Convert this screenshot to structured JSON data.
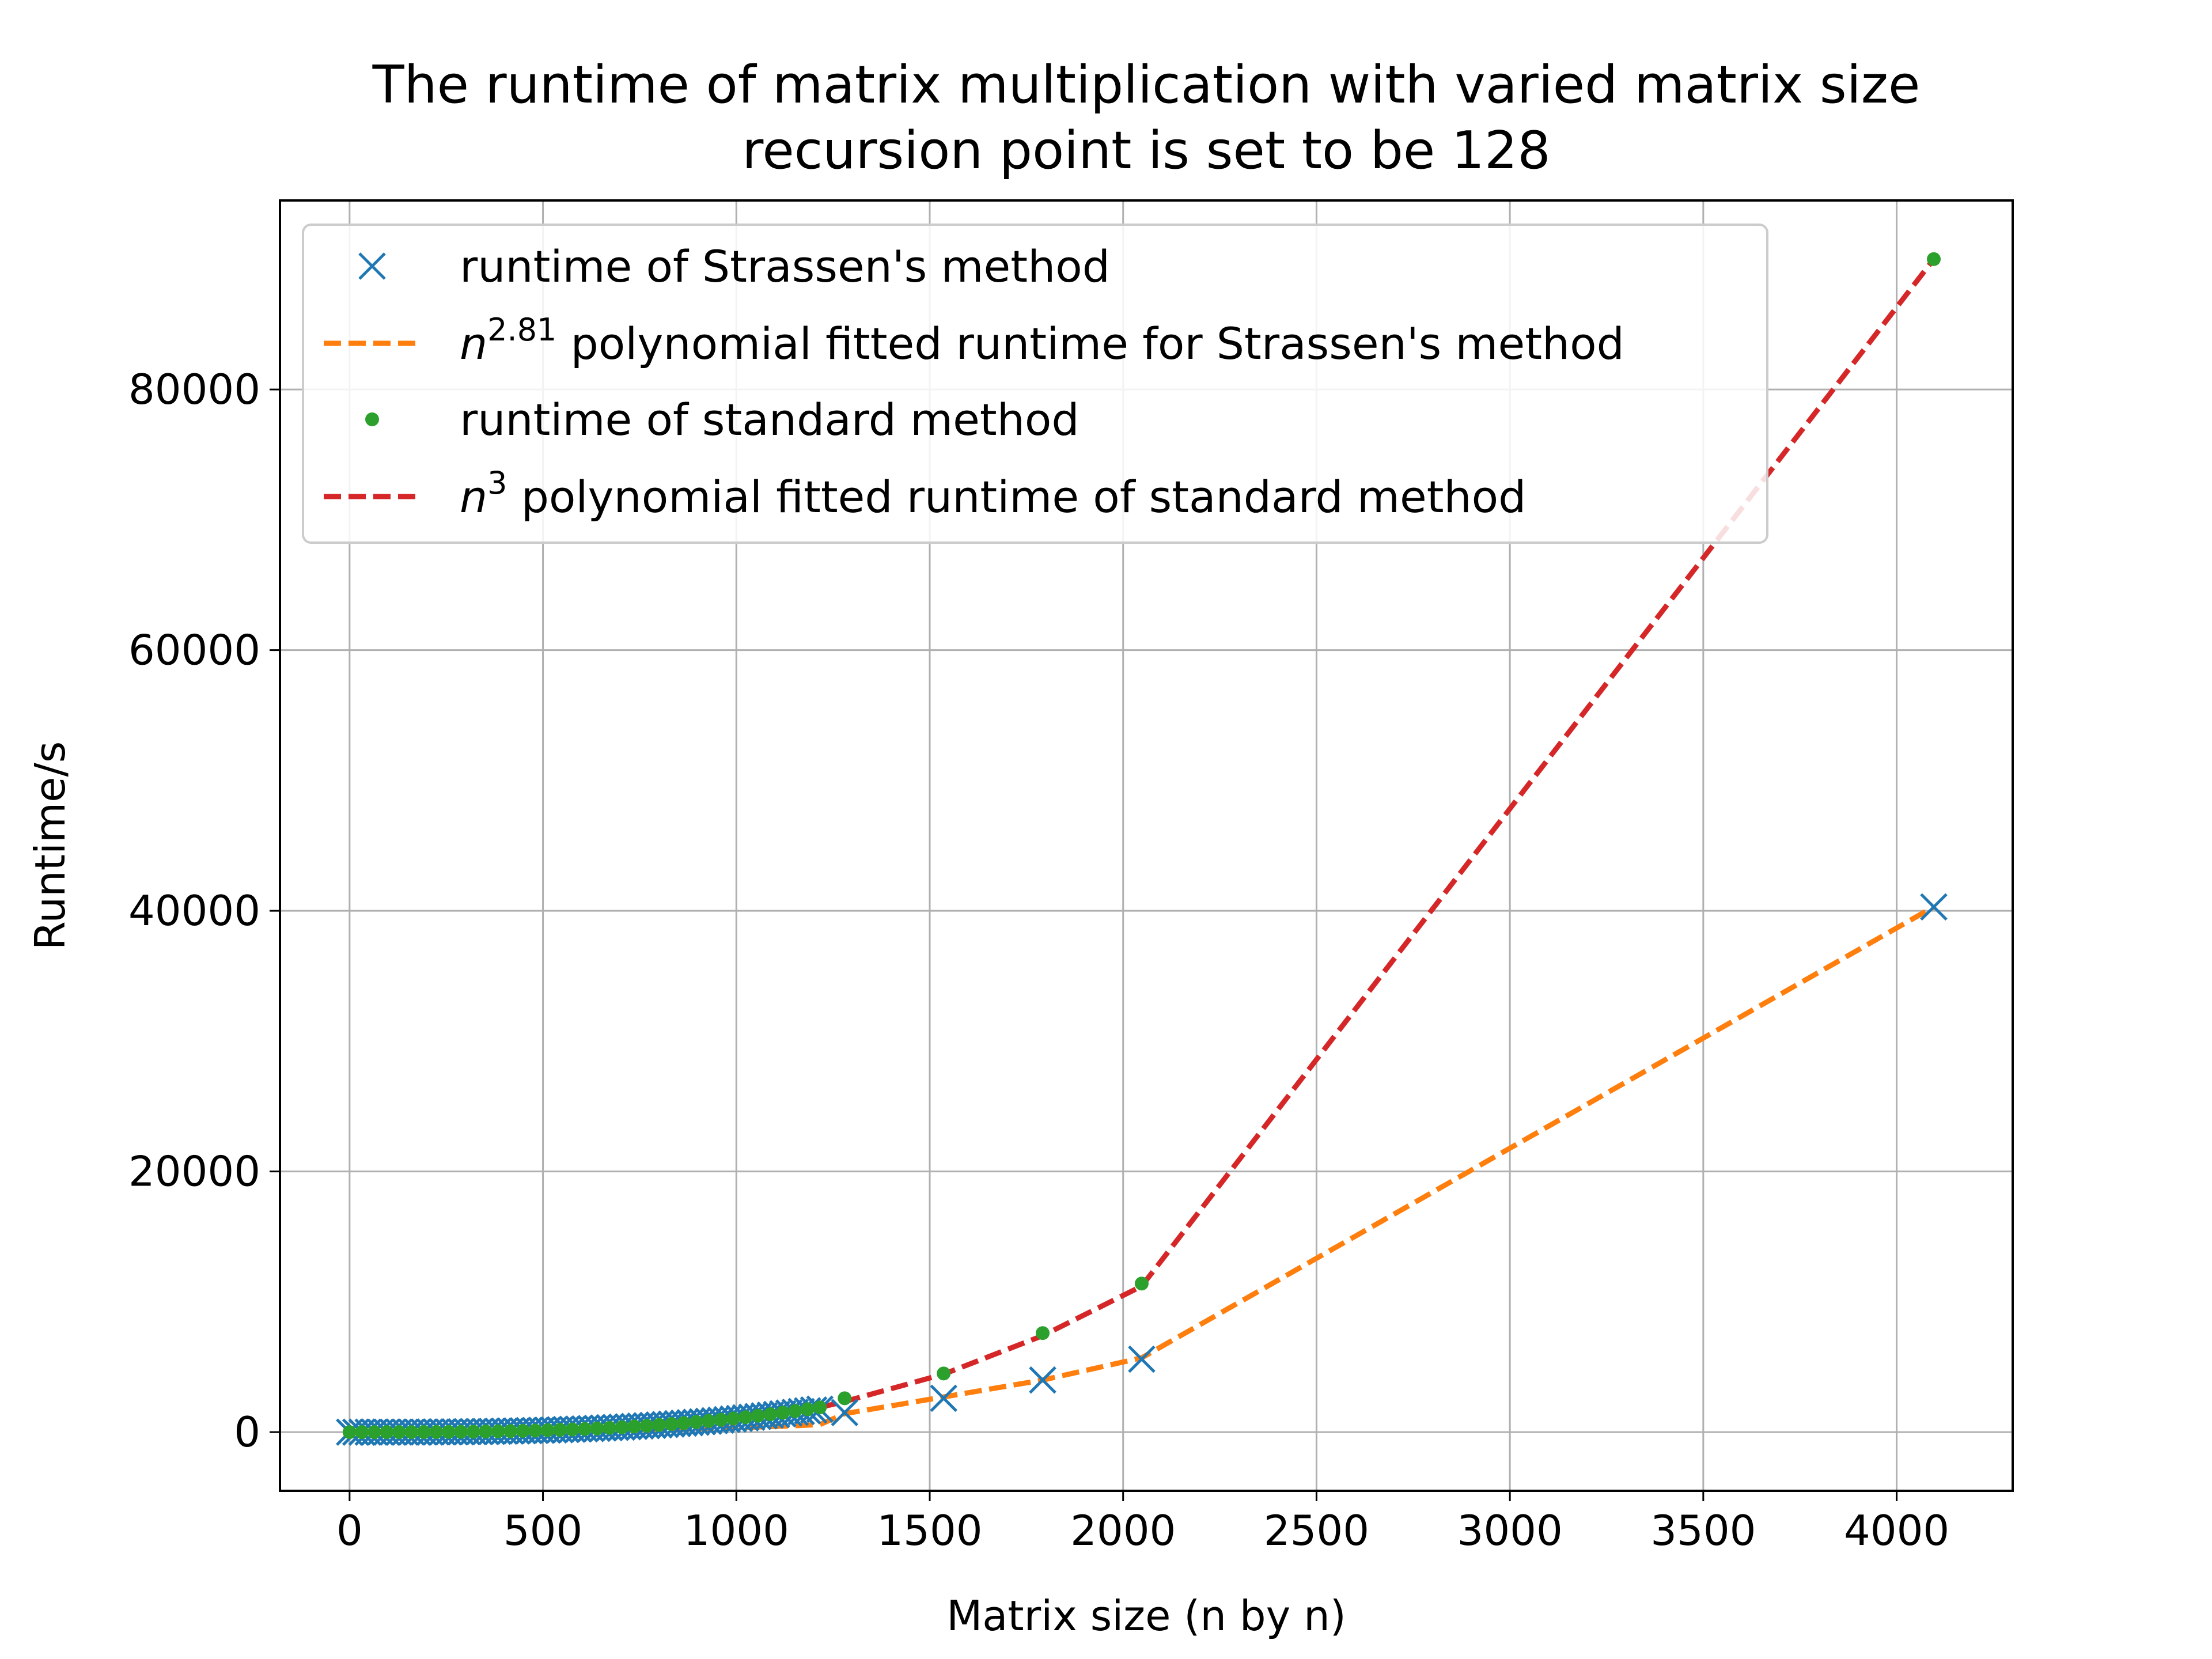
{
  "chart_data": {
    "type": "line",
    "title": "The runtime of matrix multiplication with varied matrix size",
    "subtitle": "recursion point is set to be 128",
    "xlabel": "Matrix size (n by n)",
    "ylabel": "Runtime/s",
    "xlim": [
      -180,
      4300
    ],
    "ylim": [
      -4500,
      94500
    ],
    "x_ticks": [
      0,
      500,
      1000,
      1500,
      2000,
      2500,
      3000,
      3500,
      4000
    ],
    "y_ticks": [
      0,
      20000,
      40000,
      60000,
      80000
    ],
    "x_tick_labels": [
      "0",
      "500",
      "1000",
      "1500",
      "2000",
      "2500",
      "3000",
      "3500",
      "4000"
    ],
    "y_tick_labels": [
      "0",
      "20000",
      "40000",
      "60000",
      "80000"
    ],
    "grid": true,
    "legend_position": "upper-left",
    "series": [
      {
        "name": "runtime of Strassen's method",
        "legend": {
          "prefix": "",
          "sup": "",
          "text": "runtime of Strassen's method"
        },
        "style": "marker-x",
        "color": "#1f77b4",
        "x": [
          0,
          16,
          32,
          48,
          64,
          80,
          96,
          112,
          128,
          144,
          160,
          176,
          192,
          208,
          224,
          240,
          256,
          272,
          288,
          304,
          320,
          336,
          352,
          368,
          384,
          400,
          416,
          432,
          448,
          464,
          480,
          496,
          512,
          528,
          544,
          560,
          576,
          592,
          608,
          624,
          640,
          656,
          672,
          688,
          704,
          720,
          736,
          752,
          768,
          784,
          800,
          816,
          832,
          848,
          864,
          880,
          896,
          912,
          928,
          944,
          960,
          976,
          992,
          1008,
          1024,
          1040,
          1056,
          1072,
          1088,
          1104,
          1120,
          1136,
          1152,
          1168,
          1184,
          1200,
          1216,
          1280,
          1536,
          1792,
          2048,
          4096
        ],
        "y": [
          0,
          0,
          0,
          0,
          1,
          1,
          1,
          2,
          2,
          3,
          5,
          6,
          8,
          10,
          13,
          16,
          19,
          23,
          27,
          32,
          37,
          43,
          50,
          57,
          65,
          74,
          83,
          93,
          104,
          115,
          127,
          140,
          154,
          168,
          183,
          199,
          216,
          234,
          253,
          273,
          293,
          315,
          337,
          361,
          385,
          411,
          437,
          465,
          493,
          523,
          553,
          585,
          618,
          652,
          687,
          723,
          760,
          799,
          838,
          879,
          921,
          964,
          1009,
          1054,
          1101,
          1149,
          1199,
          1249,
          1301,
          1354,
          1409,
          1465,
          1522,
          1580,
          1640,
          1701,
          1764,
          1500,
          2600,
          4000,
          5600,
          40300
        ]
      },
      {
        "name": "n^2.81 polynomial fitted runtime for Strassen's method",
        "legend": {
          "prefix": "n",
          "sup": "2.81",
          "text": " polynomial fitted runtime for Strassen's method"
        },
        "style": "dashed",
        "color": "#ff7f0e",
        "x": [
          0,
          128,
          256,
          384,
          512,
          640,
          768,
          896,
          1024,
          1152,
          1216,
          1280,
          1536,
          1792,
          2048,
          4096
        ],
        "y": [
          0,
          1,
          7,
          22,
          50,
          95,
          158,
          244,
          356,
          495,
          578,
          1420,
          2700,
          4000,
          5700,
          40300
        ]
      },
      {
        "name": "runtime of standard method",
        "legend": {
          "prefix": "",
          "sup": "",
          "text": "runtime of standard method"
        },
        "style": "marker-dot",
        "color": "#2ca02c",
        "x": [
          0,
          32,
          64,
          96,
          128,
          160,
          192,
          224,
          256,
          288,
          320,
          352,
          384,
          416,
          448,
          480,
          512,
          544,
          576,
          608,
          640,
          672,
          704,
          736,
          768,
          800,
          832,
          864,
          896,
          928,
          960,
          992,
          1024,
          1056,
          1088,
          1120,
          1152,
          1184,
          1216,
          1280,
          1536,
          1792,
          2048,
          4096
        ],
        "y": [
          0,
          0,
          0,
          1,
          3,
          5,
          8,
          12,
          18,
          26,
          35,
          47,
          61,
          78,
          98,
          120,
          146,
          175,
          208,
          244,
          285,
          330,
          379,
          433,
          491,
          555,
          623,
          697,
          776,
          860,
          951,
          1047,
          1149,
          1258,
          1373,
          1494,
          1622,
          1757,
          1899,
          2600,
          4500,
          7600,
          11400,
          90000
        ]
      },
      {
        "name": "n^3 polynomial fitted runtime of standard method",
        "legend": {
          "prefix": "n",
          "sup": "3",
          "text": " polynomial fitted runtime of standard method"
        },
        "style": "dashed",
        "color": "#d62728",
        "x": [
          0,
          256,
          512,
          768,
          1024,
          1216,
          1280,
          1536,
          1792,
          2048,
          4096
        ],
        "y": [
          0,
          18,
          146,
          491,
          1149,
          1899,
          2350,
          4450,
          7400,
          11200,
          90000
        ]
      }
    ]
  }
}
